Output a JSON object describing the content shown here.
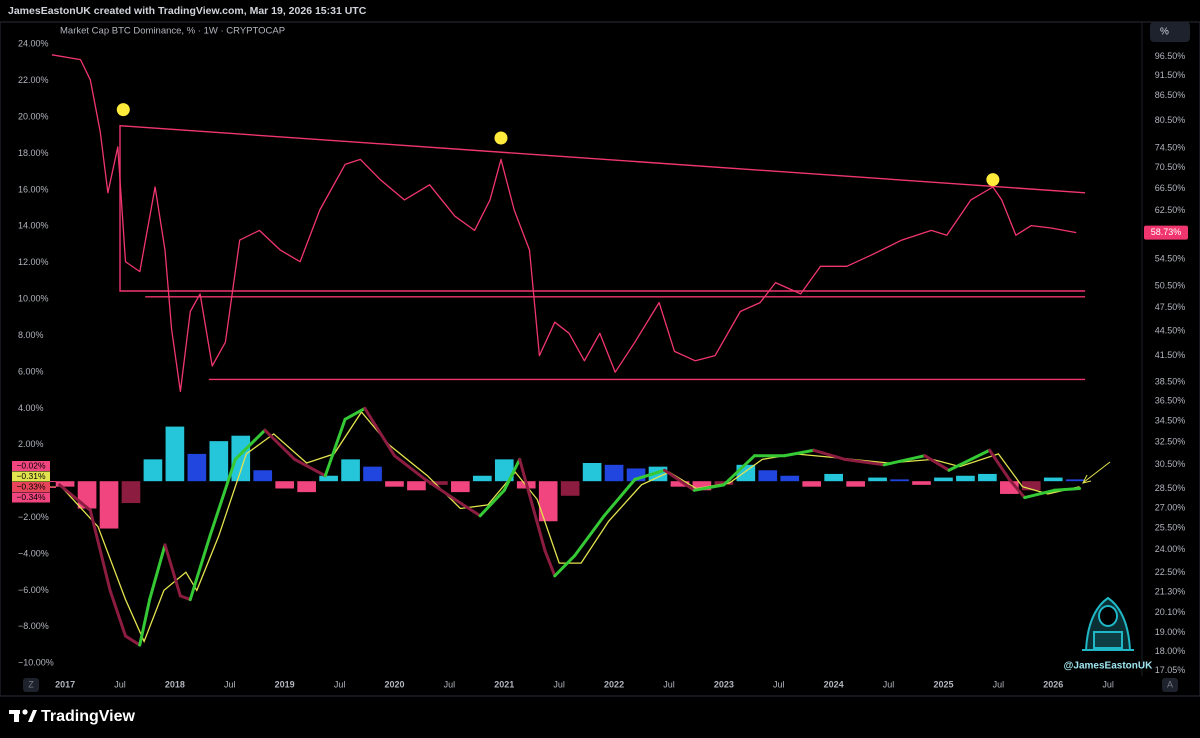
{
  "header": "JamesEastonUK created with TradingView.com, Mar 19, 2026 15:31 UTC",
  "footer": "TradingView",
  "ui": {
    "scale_button": "%",
    "zoom": "Z",
    "auto": "A",
    "watermark": "@JamesEastonUK"
  },
  "chart_data": {
    "type": "line",
    "title": "Market Cap BTC Dominance, % · 1W · CRYPTOCAP",
    "xlim": [
      2016.48,
      2026.79
    ],
    "xticks": [
      2017,
      {
        "value": 2017.5,
        "label": "Jul"
      },
      2018,
      {
        "value": 2018.5,
        "label": "Jul"
      },
      2019,
      {
        "value": 2019.5,
        "label": "Jul"
      },
      2020,
      {
        "value": 2020.5,
        "label": "Jul"
      },
      2021,
      {
        "value": 2021.5,
        "label": "Jul"
      },
      2022,
      {
        "value": 2022.5,
        "label": "Jul"
      },
      2023,
      {
        "value": 2023.5,
        "label": "Jul"
      },
      2024,
      {
        "value": 2024.5,
        "label": "Jul"
      },
      2025,
      {
        "value": 2025.5,
        "label": "Jul"
      },
      2026,
      {
        "value": 2026.5,
        "label": "Jul"
      }
    ],
    "ylim": [
      -10.7,
      24.4
    ],
    "yticks": [
      {
        "value": 24,
        "label": "24.00%"
      },
      {
        "value": 22,
        "label": "22.00%"
      },
      {
        "value": 20,
        "label": "20.00%"
      },
      {
        "value": 18,
        "label": "18.00%"
      },
      {
        "value": 16,
        "label": "16.00%"
      },
      {
        "value": 14,
        "label": "14.00%"
      },
      {
        "value": 12,
        "label": "12.00%"
      },
      {
        "value": 10,
        "label": "10.00%"
      },
      {
        "value": 8,
        "label": "8.00%"
      },
      {
        "value": 6,
        "label": "6.00%"
      },
      {
        "value": 4,
        "label": "4.00%"
      },
      {
        "value": 2,
        "label": "2.00%"
      },
      {
        "value": -2,
        "label": "−2.00%"
      },
      {
        "value": -4,
        "label": "−4.00%"
      },
      {
        "value": -6,
        "label": "−6.00%"
      },
      {
        "value": -8,
        "label": "−8.00%"
      },
      {
        "value": -10,
        "label": "−10.00%"
      }
    ],
    "y2lim": [
      16.8,
      102
    ],
    "y2log": true,
    "y2ticks": [
      {
        "value": 96.5,
        "label": "96.50%"
      },
      {
        "value": 91.5,
        "label": "91.50%"
      },
      {
        "value": 86.5,
        "label": "86.50%"
      },
      {
        "value": 80.5,
        "label": "80.50%"
      },
      {
        "value": 74.5,
        "label": "74.50%"
      },
      {
        "value": 70.5,
        "label": "70.50%"
      },
      {
        "value": 66.5,
        "label": "66.50%"
      },
      {
        "value": 62.5,
        "label": "62.50%"
      },
      {
        "value": 54.5,
        "label": "54.50%"
      },
      {
        "value": 50.5,
        "label": "50.50%"
      },
      {
        "value": 47.5,
        "label": "47.50%"
      },
      {
        "value": 44.5,
        "label": "44.50%"
      },
      {
        "value": 41.5,
        "label": "41.50%"
      },
      {
        "value": 38.5,
        "label": "38.50%"
      },
      {
        "value": 36.5,
        "label": "36.50%"
      },
      {
        "value": 34.5,
        "label": "34.50%"
      },
      {
        "value": 32.5,
        "label": "32.50%"
      },
      {
        "value": 30.5,
        "label": "30.50%"
      },
      {
        "value": 28.5,
        "label": "28.50%"
      },
      {
        "value": 27,
        "label": "27.00%"
      },
      {
        "value": 25.5,
        "label": "25.50%"
      },
      {
        "value": 24,
        "label": "24.00%"
      },
      {
        "value": 22.5,
        "label": "22.50%"
      },
      {
        "value": 21.3,
        "label": "21.30%"
      },
      {
        "value": 20.1,
        "label": "20.10%"
      },
      {
        "value": 19,
        "label": "19.00%"
      },
      {
        "value": 18,
        "label": "18.00%"
      },
      {
        "value": 17.05,
        "label": "17.05%"
      }
    ],
    "series": [
      {
        "type": "histogram",
        "axis": "y",
        "colors": {
          "rising_up": "#26c6da",
          "falling_up": "#2146e0",
          "falling_down": "#f0457e",
          "rising_down": "#8c1d40"
        },
        "x": [
          2017.0,
          2017.2,
          2017.4,
          2017.6,
          2017.8,
          2018.0,
          2018.2,
          2018.4,
          2018.6,
          2018.8,
          2019.0,
          2019.2,
          2019.4,
          2019.6,
          2019.8,
          2020.0,
          2020.2,
          2020.4,
          2020.6,
          2020.8,
          2021.0,
          2021.2,
          2021.4,
          2021.6,
          2021.8,
          2022.0,
          2022.2,
          2022.4,
          2022.6,
          2022.8,
          2023.0,
          2023.2,
          2023.4,
          2023.6,
          2023.8,
          2024.0,
          2024.2,
          2024.4,
          2024.6,
          2024.8,
          2025.0,
          2025.2,
          2025.4,
          2025.6,
          2025.8,
          2026.0,
          2026.2
        ],
        "values": [
          -0.3,
          -1.5,
          -2.6,
          -1.2,
          1.2,
          3.0,
          1.5,
          2.2,
          2.5,
          0.6,
          -0.4,
          -0.6,
          0.3,
          1.2,
          0.8,
          -0.3,
          -0.5,
          -0.2,
          -0.6,
          0.3,
          1.2,
          -0.4,
          -2.2,
          -0.8,
          1.0,
          0.9,
          0.7,
          0.8,
          -0.3,
          -0.5,
          -0.2,
          0.9,
          0.6,
          0.3,
          -0.3,
          0.4,
          -0.3,
          0.2,
          0.1,
          -0.2,
          0.2,
          0.3,
          0.4,
          -0.7,
          -0.5,
          0.2,
          0.1
        ]
      },
      {
        "type": "signal",
        "axis": "y",
        "color": "#e3e34f",
        "x": [
          2016.95,
          2017.3,
          2017.55,
          2017.72,
          2017.9,
          2018.1,
          2018.2,
          2018.4,
          2018.65,
          2018.9,
          2019.2,
          2019.45,
          2019.7,
          2019.95,
          2020.3,
          2020.6,
          2020.85,
          2021.1,
          2021.3,
          2021.5,
          2021.7,
          2021.95,
          2022.25,
          2022.5,
          2022.75,
          2023.05,
          2023.35,
          2023.65,
          2024.0,
          2024.5,
          2024.9,
          2025.15,
          2025.5,
          2025.72,
          2025.95,
          2026.24
        ],
        "values": [
          -0.2,
          -2.5,
          -6.5,
          -8.8,
          -6.0,
          -5.0,
          -6.0,
          -3.0,
          1.5,
          2.6,
          1.0,
          1.5,
          3.8,
          2.0,
          0.3,
          -1.5,
          -1.3,
          0.5,
          -1.0,
          -4.5,
          -4.5,
          -2.2,
          -0.2,
          0.5,
          -0.4,
          -0.1,
          1.2,
          1.5,
          1.3,
          1.0,
          1.2,
          0.8,
          1.5,
          -0.3,
          -0.7,
          -0.3
        ]
      },
      {
        "type": "macd",
        "axis": "y",
        "colors": {
          "rising": "#35c935",
          "falling": "#8c1d40"
        },
        "x": [
          2016.95,
          2017.23,
          2017.41,
          2017.55,
          2017.68,
          2017.77,
          2017.91,
          2018.05,
          2018.14,
          2018.32,
          2018.55,
          2018.82,
          2019.09,
          2019.37,
          2019.55,
          2019.73,
          2020.0,
          2020.28,
          2020.55,
          2020.78,
          2021.0,
          2021.14,
          2021.37,
          2021.46,
          2021.64,
          2021.91,
          2022.19,
          2022.46,
          2022.73,
          2023.0,
          2023.28,
          2023.55,
          2023.82,
          2024.1,
          2024.46,
          2024.83,
          2025.05,
          2025.42,
          2025.6,
          2025.74,
          2026.01,
          2026.24
        ],
        "values": [
          -0.2,
          -1.6,
          -6.0,
          -8.5,
          -9.0,
          -6.5,
          -3.5,
          -6.3,
          -6.5,
          -3.0,
          1.2,
          2.8,
          1.2,
          0.3,
          3.4,
          4.0,
          1.4,
          0.1,
          -1.0,
          -1.9,
          -0.5,
          1.2,
          -3.8,
          -5.2,
          -4.1,
          -1.9,
          0.1,
          0.6,
          -0.5,
          -0.2,
          1.4,
          1.4,
          1.7,
          1.2,
          0.9,
          1.4,
          0.6,
          1.7,
          0.1,
          -0.9,
          -0.5,
          -0.4
        ]
      },
      {
        "type": "line",
        "axis": "y2",
        "color": "#f0366f",
        "x": [
          2016.88,
          2017.14,
          2017.23,
          2017.32,
          2017.39,
          2017.48,
          2017.55,
          2017.68,
          2017.82,
          2017.91,
          2017.97,
          2018.05,
          2018.14,
          2018.23,
          2018.34,
          2018.46,
          2018.59,
          2018.77,
          2018.96,
          2019.14,
          2019.32,
          2019.55,
          2019.69,
          2019.87,
          2020.09,
          2020.32,
          2020.55,
          2020.73,
          2020.87,
          2020.97,
          2021.09,
          2021.23,
          2021.32,
          2021.46,
          2021.59,
          2021.73,
          2021.87,
          2022.01,
          2022.19,
          2022.41,
          2022.55,
          2022.74,
          2022.92,
          2023.15,
          2023.33,
          2023.47,
          2023.7,
          2023.88,
          2024.12,
          2024.34,
          2024.62,
          2024.89,
          2025.03,
          2025.25,
          2025.45,
          2025.53,
          2025.66,
          2025.8,
          2025.98,
          2026.21
        ],
        "values": [
          97.0,
          95.7,
          90.4,
          78.1,
          65.7,
          74.8,
          54.1,
          52.6,
          66.8,
          55.9,
          44.7,
          37.5,
          47.0,
          49.4,
          40.3,
          43.1,
          57.5,
          59.1,
          55.9,
          54.1,
          62.6,
          71.2,
          72.2,
          68.2,
          64.4,
          67.2,
          61.5,
          59.1,
          64.4,
          72.2,
          62.6,
          55.9,
          41.5,
          45.6,
          44.2,
          40.9,
          44.2,
          39.6,
          43.1,
          48.2,
          42.0,
          40.9,
          41.5,
          47.0,
          48.2,
          51.0,
          49.4,
          53.4,
          53.4,
          55.1,
          57.5,
          59.1,
          58.3,
          64.4,
          66.8,
          64.4,
          58.3,
          59.9,
          59.5,
          58.73
        ]
      }
    ],
    "trendlines": [
      {
        "color": "#f0366f",
        "x": [
          2026.29,
          2017.5,
          2017.5,
          2026.29
        ],
        "values": [
          65.7,
          79.4,
          49.8,
          49.8
        ]
      },
      {
        "color": "#f0366f",
        "x": [
          2017.73,
          2026.29
        ],
        "values": [
          49.0,
          49.0
        ]
      },
      {
        "color": "#f0366f",
        "x": [
          2018.31,
          2026.29
        ],
        "values": [
          38.8,
          38.8
        ]
      }
    ],
    "markers": {
      "color": "#ffeb3b",
      "x": [
        2017.53,
        2020.97,
        2025.45
      ],
      "values": [
        83.1,
        76.7,
        68.2
      ]
    },
    "price_label": {
      "value": 58.73,
      "label": "58.73%",
      "color": "#f0366f"
    },
    "indicator_labels": [
      {
        "value": -0.02,
        "label": "−0.02%",
        "color": "#f0457e"
      },
      {
        "value": -0.31,
        "label": "−0.31%",
        "color": "#e3e34f"
      },
      {
        "value": -0.33,
        "label": "−0.33%",
        "color": "#e8455a"
      },
      {
        "value": -0.34,
        "label": "−0.34%",
        "color": "#f0457e"
      }
    ]
  }
}
